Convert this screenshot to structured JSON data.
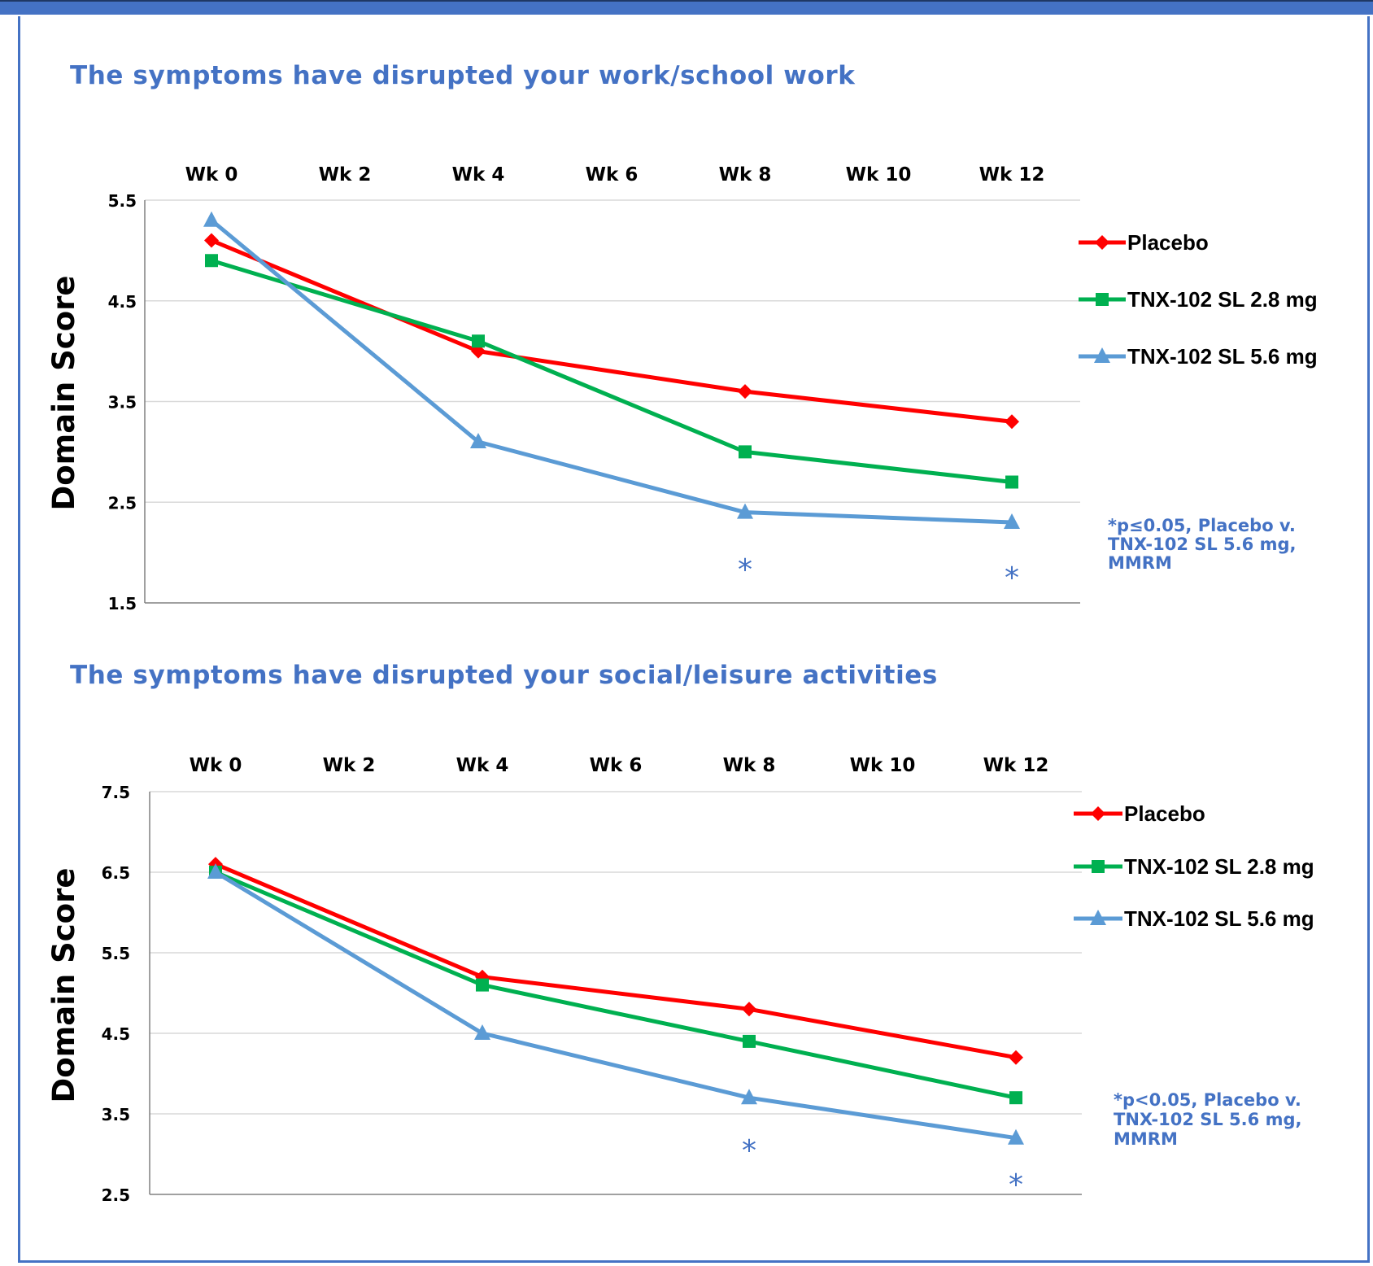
{
  "chart_data": [
    {
      "type": "line",
      "title": "The symptoms have disrupted your work/school work",
      "ylabel": "Domain Score",
      "xlabel": "",
      "categories": [
        "Wk 0",
        "Wk 2",
        "Wk 4",
        "Wk 6",
        "Wk 8",
        "Wk 10",
        "Wk 12"
      ],
      "ylim": [
        1.5,
        5.5
      ],
      "yticks": [
        "5.5",
        "4.5",
        "3.5",
        "2.5",
        "1.5"
      ],
      "x_axis_position": "top",
      "grid": "horizontal",
      "legend_position": "right",
      "series": [
        {
          "name": "Placebo",
          "color": "#ff0000",
          "marker": "diamond",
          "x": [
            "Wk 0",
            "Wk 4",
            "Wk 8",
            "Wk 12"
          ],
          "values": [
            5.1,
            4.0,
            3.6,
            3.3
          ]
        },
        {
          "name": "TNX-102 SL 2.8 mg",
          "color": "#00b050",
          "marker": "square",
          "x": [
            "Wk 0",
            "Wk 4",
            "Wk 8",
            "Wk 12"
          ],
          "values": [
            4.9,
            4.1,
            3.0,
            2.7
          ]
        },
        {
          "name": "TNX-102 SL 5.6 mg",
          "color": "#5b9bd5",
          "marker": "triangle",
          "x": [
            "Wk 0",
            "Wk 4",
            "Wk 8",
            "Wk 12"
          ],
          "values": [
            5.3,
            3.1,
            2.4,
            2.3
          ]
        }
      ],
      "significance": {
        "marker": "*",
        "at": [
          "Wk 8",
          "Wk 12"
        ]
      },
      "annotation": [
        "*p≤0.05, Placebo v.",
        "TNX-102 SL 5.6 mg,",
        "MMRM"
      ]
    },
    {
      "type": "line",
      "title": "The symptoms have disrupted your social/leisure activities",
      "ylabel": "Domain Score",
      "xlabel": "",
      "categories": [
        "Wk 0",
        "Wk 2",
        "Wk 4",
        "Wk 6",
        "Wk 8",
        "Wk 10",
        "Wk 12"
      ],
      "ylim": [
        2.5,
        7.5
      ],
      "yticks": [
        "7.5",
        "6.5",
        "5.5",
        "4.5",
        "3.5",
        "2.5"
      ],
      "x_axis_position": "top",
      "grid": "horizontal",
      "legend_position": "right",
      "series": [
        {
          "name": "Placebo",
          "color": "#ff0000",
          "marker": "diamond",
          "x": [
            "Wk 0",
            "Wk 4",
            "Wk 8",
            "Wk 12"
          ],
          "values": [
            6.6,
            5.2,
            4.8,
            4.2
          ]
        },
        {
          "name": "TNX-102 SL 2.8 mg",
          "color": "#00b050",
          "marker": "square",
          "x": [
            "Wk 0",
            "Wk 4",
            "Wk 8",
            "Wk 12"
          ],
          "values": [
            6.5,
            5.1,
            4.4,
            3.7
          ]
        },
        {
          "name": "TNX-102 SL 5.6 mg",
          "color": "#5b9bd5",
          "marker": "triangle",
          "x": [
            "Wk 0",
            "Wk 4",
            "Wk 8",
            "Wk 12"
          ],
          "values": [
            6.5,
            4.5,
            3.7,
            3.2
          ]
        }
      ],
      "significance": {
        "marker": "*",
        "at": [
          "Wk 8",
          "Wk 12"
        ]
      },
      "annotation": [
        "*p<0.05, Placebo v.",
        "TNX-102 SL 5.6 mg,",
        "MMRM"
      ]
    }
  ]
}
